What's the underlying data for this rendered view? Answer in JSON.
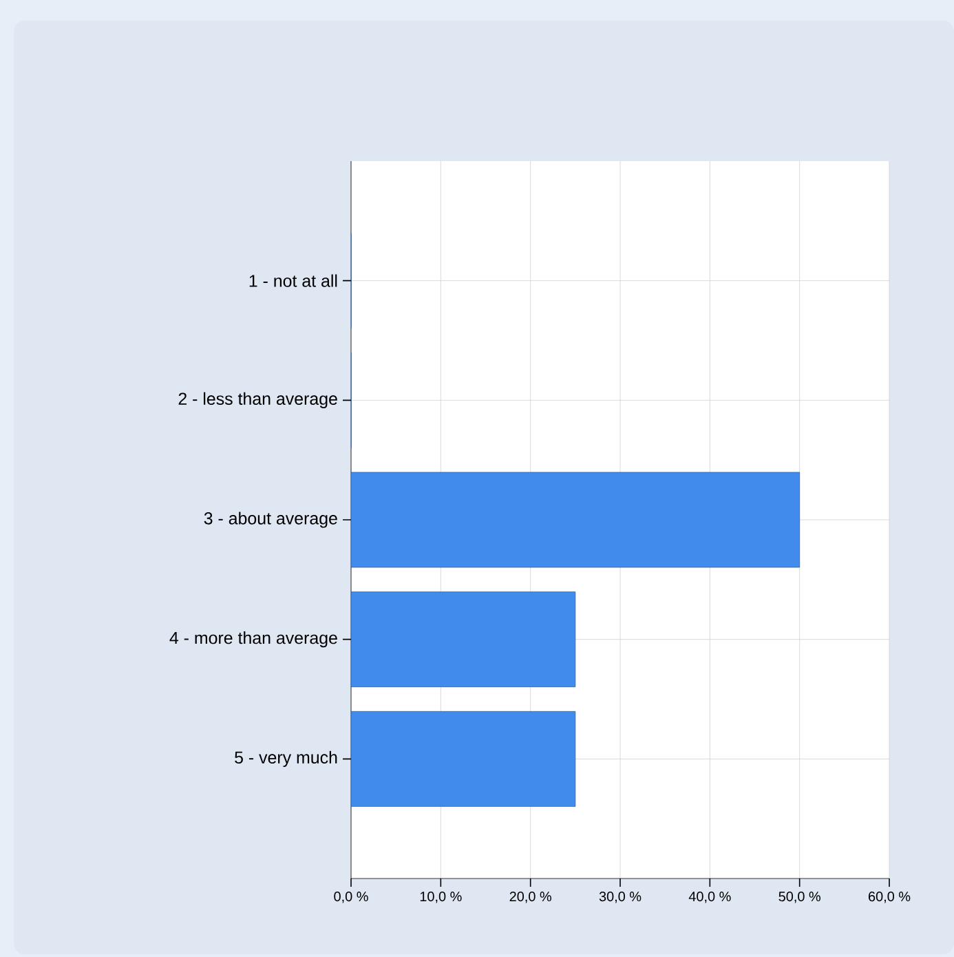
{
  "chart_data": {
    "type": "bar",
    "orientation": "horizontal",
    "categories": [
      "1 - not at all",
      "2 - less than average",
      "3 - about average",
      "4 - more than average",
      "5 - very much"
    ],
    "values": [
      0,
      0,
      50,
      25,
      25
    ],
    "color": "#418bed",
    "xlim": [
      0,
      60
    ],
    "xticks": [
      {
        "value": 0,
        "label": "0,0 %"
      },
      {
        "value": 10,
        "label": "10,0 %"
      },
      {
        "value": 20,
        "label": "20,0 %"
      },
      {
        "value": 30,
        "label": "30,0 %"
      },
      {
        "value": 40,
        "label": "40,0 %"
      },
      {
        "value": 50,
        "label": "50,0 %"
      },
      {
        "value": 60,
        "label": "60,0 %"
      }
    ],
    "grid": true
  }
}
